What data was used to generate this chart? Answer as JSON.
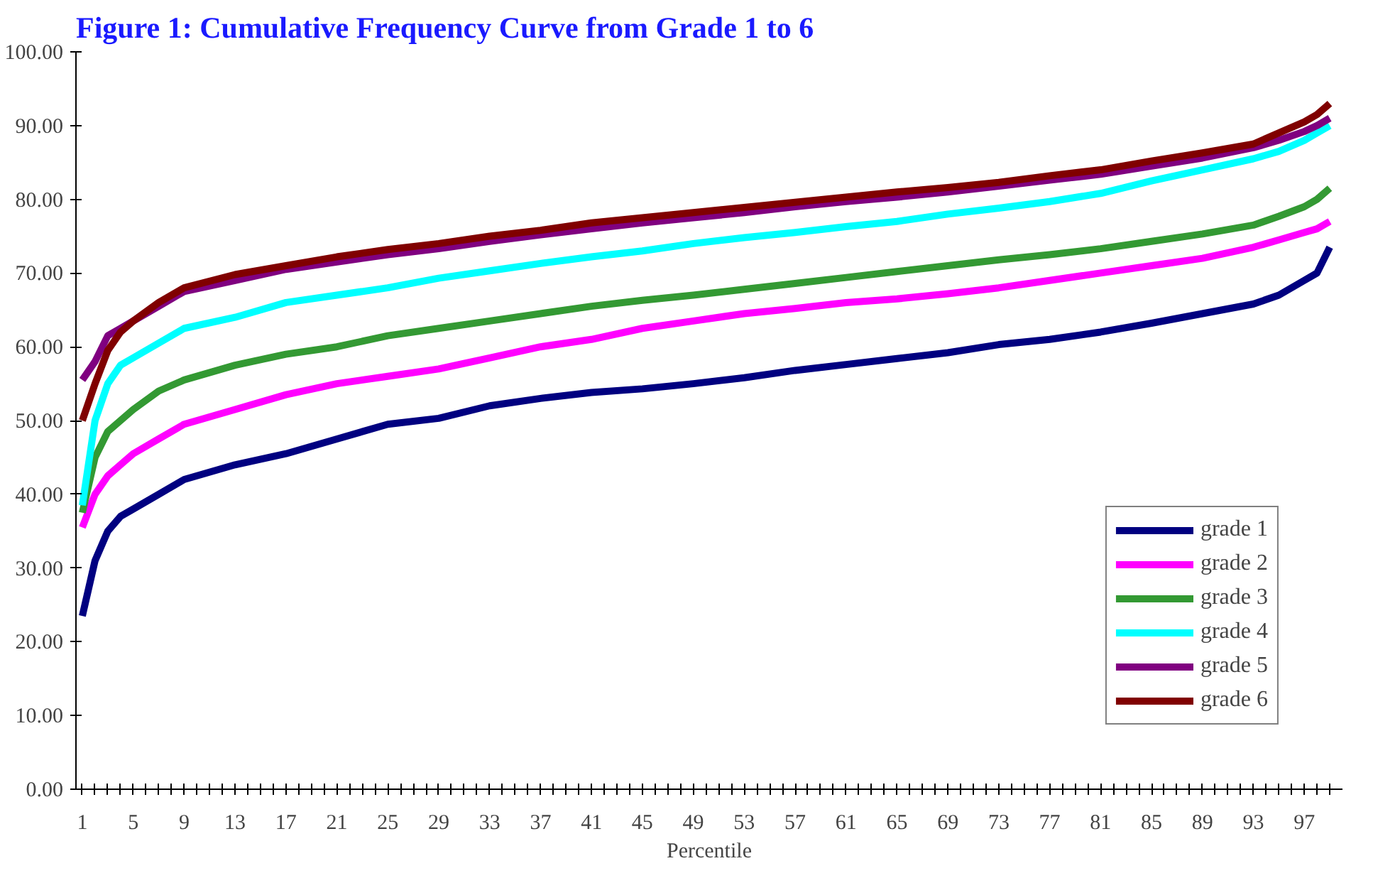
{
  "chart_data": {
    "type": "line",
    "title": "Figure 1: Cumulative Frequency Curve from Grade 1 to 6",
    "xlabel": "Percentile",
    "x": [
      1,
      2,
      3,
      4,
      5,
      7,
      9,
      13,
      17,
      21,
      25,
      29,
      33,
      37,
      41,
      45,
      49,
      53,
      57,
      61,
      65,
      69,
      73,
      77,
      81,
      85,
      89,
      93,
      95,
      97,
      98,
      99
    ],
    "series": [
      {
        "name": "grade 1",
        "color": "#000080",
        "values": [
          23.5,
          31,
          35,
          37,
          38,
          40,
          42,
          44,
          45.5,
          47.5,
          49.5,
          50.3,
          52,
          53,
          53.8,
          54.3,
          55,
          55.8,
          56.8,
          57.6,
          58.4,
          59.2,
          60.3,
          61,
          62,
          63.2,
          64.5,
          65.8,
          67,
          69,
          70,
          73.5
        ]
      },
      {
        "name": "grade 2",
        "color": "#ff00ff",
        "values": [
          35.5,
          40,
          42.5,
          44,
          45.5,
          47.5,
          49.5,
          51.5,
          53.5,
          55,
          56,
          57,
          58.5,
          60,
          61,
          62.5,
          63.5,
          64.5,
          65.2,
          66,
          66.5,
          67.2,
          68,
          69,
          70,
          71,
          72,
          73.5,
          74.5,
          75.5,
          76,
          77
        ]
      },
      {
        "name": "grade 3",
        "color": "#339933",
        "values": [
          37.5,
          45,
          48.5,
          50,
          51.5,
          54,
          55.5,
          57.5,
          59,
          60,
          61.5,
          62.5,
          63.5,
          64.5,
          65.5,
          66.3,
          67,
          67.8,
          68.6,
          69.4,
          70.2,
          71,
          71.8,
          72.5,
          73.3,
          74.3,
          75.3,
          76.5,
          77.7,
          79,
          80,
          81.5
        ]
      },
      {
        "name": "grade 4",
        "color": "#00ffff",
        "values": [
          38.5,
          50,
          55,
          57.5,
          58.5,
          60.5,
          62.5,
          64,
          66,
          67,
          68,
          69.3,
          70.3,
          71.3,
          72.2,
          73,
          74,
          74.8,
          75.5,
          76.3,
          77,
          78,
          78.8,
          79.7,
          80.8,
          82.5,
          84,
          85.5,
          86.5,
          88,
          89,
          90
        ]
      },
      {
        "name": "grade 5",
        "color": "#800080",
        "values": [
          55.5,
          58,
          61.5,
          62.5,
          63.5,
          65.5,
          67.5,
          69,
          70.5,
          71.5,
          72.5,
          73.3,
          74.3,
          75.2,
          76,
          76.8,
          77.5,
          78.2,
          79,
          79.7,
          80.3,
          81,
          81.8,
          82.6,
          83.4,
          84.5,
          85.6,
          87,
          88,
          89.2,
          90,
          91
        ]
      },
      {
        "name": "grade 6",
        "color": "#800000",
        "values": [
          50,
          55,
          59.5,
          62,
          63.5,
          66,
          68,
          69.8,
          71,
          72.2,
          73.2,
          74,
          75,
          75.8,
          76.8,
          77.5,
          78.2,
          78.9,
          79.6,
          80.3,
          81,
          81.6,
          82.3,
          83.2,
          84,
          85.2,
          86.3,
          87.5,
          89,
          90.5,
          91.5,
          93
        ]
      }
    ],
    "xlim": [
      0.5,
      100
    ],
    "xticks": [
      1,
      {
        "value": 2,
        "label": null
      },
      {
        "value": 3,
        "label": null
      },
      {
        "value": 4,
        "label": null
      },
      5,
      {
        "value": 6,
        "label": null
      },
      {
        "value": 7,
        "label": null
      },
      {
        "value": 8,
        "label": null
      },
      9,
      {
        "value": 10,
        "label": null
      },
      {
        "value": 11,
        "label": null
      },
      {
        "value": 12,
        "label": null
      },
      13,
      {
        "value": 14,
        "label": null
      },
      {
        "value": 15,
        "label": null
      },
      {
        "value": 16,
        "label": null
      },
      17,
      {
        "value": 18,
        "label": null
      },
      {
        "value": 19,
        "label": null
      },
      {
        "value": 20,
        "label": null
      },
      21,
      {
        "value": 22,
        "label": null
      },
      {
        "value": 23,
        "label": null
      },
      {
        "value": 24,
        "label": null
      },
      25,
      {
        "value": 26,
        "label": null
      },
      {
        "value": 27,
        "label": null
      },
      {
        "value": 28,
        "label": null
      },
      29,
      {
        "value": 30,
        "label": null
      },
      {
        "value": 31,
        "label": null
      },
      {
        "value": 32,
        "label": null
      },
      33,
      {
        "value": 34,
        "label": null
      },
      {
        "value": 35,
        "label": null
      },
      {
        "value": 36,
        "label": null
      },
      37,
      {
        "value": 38,
        "label": null
      },
      {
        "value": 39,
        "label": null
      },
      {
        "value": 40,
        "label": null
      },
      41,
      {
        "value": 42,
        "label": null
      },
      {
        "value": 43,
        "label": null
      },
      {
        "value": 44,
        "label": null
      },
      45,
      {
        "value": 46,
        "label": null
      },
      {
        "value": 47,
        "label": null
      },
      {
        "value": 48,
        "label": null
      },
      49,
      {
        "value": 50,
        "label": null
      },
      {
        "value": 51,
        "label": null
      },
      {
        "value": 52,
        "label": null
      },
      53,
      {
        "value": 54,
        "label": null
      },
      {
        "value": 55,
        "label": null
      },
      {
        "value": 56,
        "label": null
      },
      57,
      {
        "value": 58,
        "label": null
      },
      {
        "value": 59,
        "label": null
      },
      {
        "value": 60,
        "label": null
      },
      61,
      {
        "value": 62,
        "label": null
      },
      {
        "value": 63,
        "label": null
      },
      {
        "value": 64,
        "label": null
      },
      65,
      {
        "value": 66,
        "label": null
      },
      {
        "value": 67,
        "label": null
      },
      {
        "value": 68,
        "label": null
      },
      69,
      {
        "value": 70,
        "label": null
      },
      {
        "value": 71,
        "label": null
      },
      {
        "value": 72,
        "label": null
      },
      73,
      {
        "value": 74,
        "label": null
      },
      {
        "value": 75,
        "label": null
      },
      {
        "value": 76,
        "label": null
      },
      77,
      {
        "value": 78,
        "label": null
      },
      {
        "value": 79,
        "label": null
      },
      {
        "value": 80,
        "label": null
      },
      81,
      {
        "value": 82,
        "label": null
      },
      {
        "value": 83,
        "label": null
      },
      {
        "value": 84,
        "label": null
      },
      85,
      {
        "value": 86,
        "label": null
      },
      {
        "value": 87,
        "label": null
      },
      {
        "value": 88,
        "label": null
      },
      89,
      {
        "value": 90,
        "label": null
      },
      {
        "value": 91,
        "label": null
      },
      {
        "value": 92,
        "label": null
      },
      93,
      {
        "value": 94,
        "label": null
      },
      {
        "value": 95,
        "label": null
      },
      {
        "value": 96,
        "label": null
      },
      97,
      {
        "value": 98,
        "label": null
      },
      {
        "value": 99,
        "label": null
      }
    ],
    "ylim": [
      0,
      100
    ],
    "yticks": [
      {
        "value": 0,
        "label": "0.00"
      },
      {
        "value": 10,
        "label": "10.00"
      },
      {
        "value": 20,
        "label": "20.00"
      },
      {
        "value": 30,
        "label": "30.00"
      },
      {
        "value": 40,
        "label": "40.00"
      },
      {
        "value": 50,
        "label": "50.00"
      },
      {
        "value": 60,
        "label": "60.00"
      },
      {
        "value": 70,
        "label": "70.00"
      },
      {
        "value": 80,
        "label": "80.00"
      },
      {
        "value": 90,
        "label": "90.00"
      },
      {
        "value": 100,
        "label": "100.00"
      }
    ],
    "grid": false,
    "legend": "bottom right",
    "line_style": "solid"
  }
}
